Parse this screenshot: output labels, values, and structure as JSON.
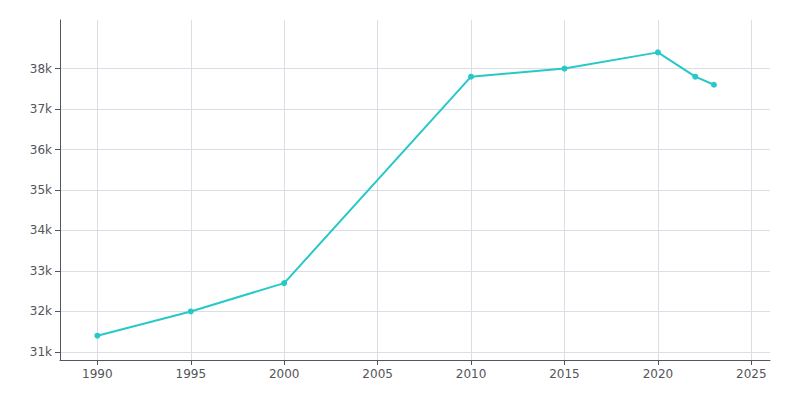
{
  "chart_data": {
    "type": "line",
    "x": [
      1990,
      1995,
      2000,
      2010,
      2015,
      2020,
      2022,
      2023
    ],
    "values": [
      31400,
      32000,
      32700,
      37800,
      38000,
      38400,
      37800,
      37600
    ],
    "color": "#28c8c8",
    "marker": "circle",
    "xlim": [
      1988,
      2026
    ],
    "xticks": [
      1990,
      1995,
      2000,
      2005,
      2010,
      2015,
      2020,
      2025
    ],
    "ylim": [
      30800,
      39200
    ],
    "yticks": [
      {
        "value": 31000,
        "label": "31k"
      },
      {
        "value": 32000,
        "label": "32k"
      },
      {
        "value": 33000,
        "label": "33k"
      },
      {
        "value": 34000,
        "label": "34k"
      },
      {
        "value": 35000,
        "label": "35k"
      },
      {
        "value": 36000,
        "label": "36k"
      },
      {
        "value": 37000,
        "label": "37k"
      },
      {
        "value": 38000,
        "label": "38k"
      }
    ],
    "grid": true
  }
}
